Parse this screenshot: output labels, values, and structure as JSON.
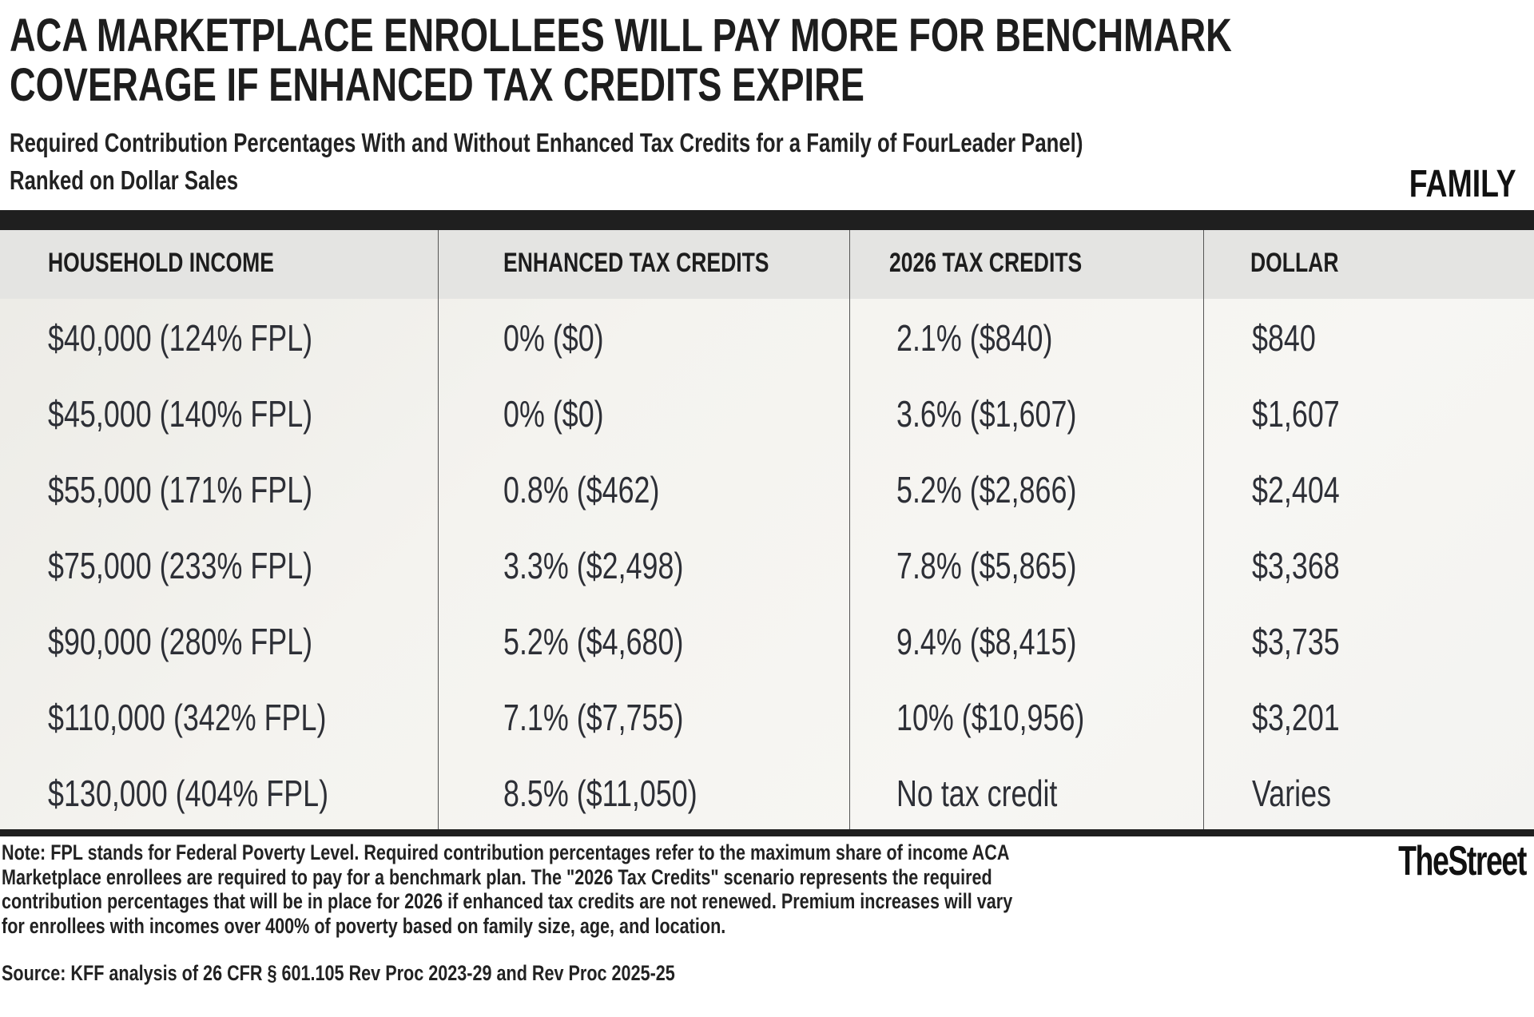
{
  "title_lines": [
    "ACA MARKETPLACE ENROLLEES WILL PAY MORE FOR BENCHMARK",
    "COVERAGE IF ENHANCED TAX CREDITS EXPIRE"
  ],
  "subtitle": "Required Contribution Percentages With and Without Enhanced Tax Credits for a Family of FourLeader Panel)",
  "subtitle2": "Ranked on Dollar Sales",
  "tag": "FAMILY",
  "chart_data": {
    "type": "table",
    "columns": [
      "HOUSEHOLD INCOME",
      "ENHANCED TAX CREDITS",
      "2026 TAX CREDITS",
      "DOLLAR"
    ],
    "rows": [
      [
        "$40,000 (124% FPL)",
        "0% ($0)",
        "2.1% ($840)",
        "$840"
      ],
      [
        "$45,000 (140% FPL)",
        "0% ($0)",
        "3.6% ($1,607)",
        "$1,607"
      ],
      [
        "$55,000 (171% FPL)",
        "0.8% ($462)",
        "5.2% ($2,866)",
        "$2,404"
      ],
      [
        "$75,000 (233% FPL)",
        "3.3% ($2,498)",
        "7.8% ($5,865)",
        "$3,368"
      ],
      [
        "$90,000 (280% FPL)",
        "5.2% ($4,680)",
        "9.4% ($8,415)",
        "$3,735"
      ],
      [
        "$110,000 (342% FPL)",
        "7.1% ($7,755)",
        "10% ($10,956)",
        "$3,201"
      ],
      [
        "$130,000 (404% FPL)",
        "8.5% ($11,050)",
        "No tax credit",
        "Varies"
      ]
    ]
  },
  "note_lines": [
    "Note: FPL stands for Federal Poverty Level. Required contribution percentages refer to the maximum share of income ACA",
    "Marketplace enrollees are required to pay for a benchmark plan. The \"2026 Tax Credits\" scenario represents the required",
    "contribution percentages that will be in place for 2026 if enhanced tax credits are not renewed. Premium increases will vary",
    "for enrollees with incomes over 400% of poverty based on family size, age, and location."
  ],
  "source": "Source: KFF analysis of 26 CFR § 601.105 Rev Proc 2023-29 and Rev Proc 2025-25",
  "logo": "TheStreet"
}
